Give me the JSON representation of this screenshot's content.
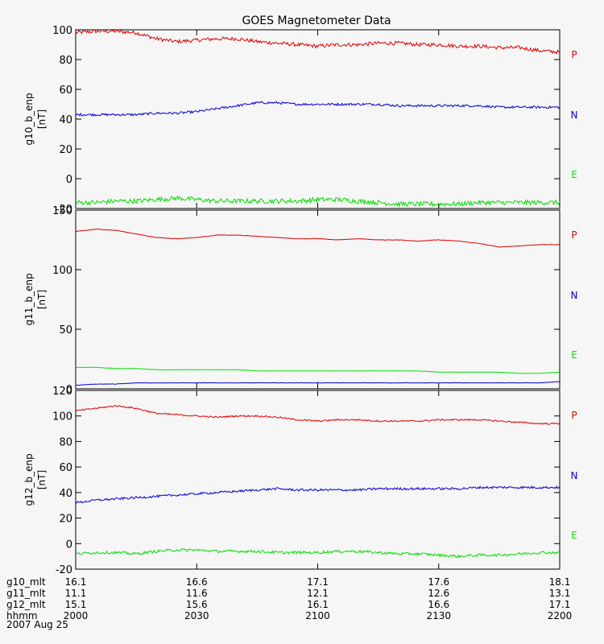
{
  "title": "GOES Magnetometer Data",
  "colors": {
    "P": "#e00000",
    "N": "#0000d0",
    "E": "#00e000",
    "axis": "#000000",
    "background": "#f6f6f6"
  },
  "legend": [
    "P",
    "N",
    "E"
  ],
  "date": "2007 Aug 25",
  "footer": {
    "row_labels": [
      "g10_mlt",
      "g11_mlt",
      "g12_mlt",
      "hhmm"
    ],
    "columns": [
      [
        "16.1",
        "11.1",
        "15.1",
        "2000"
      ],
      [
        "16.6",
        "11.6",
        "15.6",
        "2030"
      ],
      [
        "17.1",
        "12.1",
        "16.1",
        "2100"
      ],
      [
        "17.6",
        "12.6",
        "16.6",
        "2130"
      ],
      [
        "18.1",
        "13.1",
        "17.1",
        "2200"
      ]
    ]
  },
  "chart_data": [
    {
      "type": "line",
      "ylabel": "g10_b_enp",
      "unit": "[nT]",
      "ylim": [
        -20,
        100
      ],
      "yticks": [
        "-20",
        "0",
        "20",
        "40",
        "60",
        "80",
        "100"
      ],
      "x": [
        2000,
        2005,
        2010,
        2015,
        2020,
        2025,
        2030,
        2035,
        2040,
        2045,
        2050,
        2055,
        2100,
        2105,
        2110,
        2115,
        2120,
        2125,
        2130,
        2135,
        2140,
        2145,
        2150,
        2155,
        2200
      ],
      "series": [
        {
          "name": "P",
          "values": [
            98,
            99,
            99,
            98,
            94,
            92,
            93,
            94,
            94,
            92,
            91,
            90,
            89,
            90,
            90,
            91,
            91,
            90,
            90,
            89,
            89,
            88,
            88,
            86,
            85
          ]
        },
        {
          "name": "N",
          "values": [
            43,
            43,
            43,
            43,
            44,
            44,
            45,
            47,
            49,
            51,
            51,
            50,
            50,
            50,
            50,
            50,
            49,
            49,
            49,
            49,
            49,
            48,
            48,
            48,
            48
          ]
        },
        {
          "name": "E",
          "values": [
            -16,
            -16,
            -15,
            -15,
            -14,
            -13,
            -14,
            -15,
            -15,
            -15,
            -15,
            -15,
            -14,
            -14,
            -15,
            -16,
            -17,
            -17,
            -17,
            -17,
            -16,
            -16,
            -16,
            -16,
            -16
          ]
        }
      ],
      "noise": [
        2.5,
        1.6,
        3.2
      ]
    },
    {
      "type": "line",
      "ylabel": "g11_b_enp",
      "unit": "[nT]",
      "ylim": [
        0,
        150
      ],
      "yticks": [
        "0",
        "50",
        "100",
        "150"
      ],
      "x": [
        2000,
        2005,
        2010,
        2015,
        2020,
        2025,
        2030,
        2035,
        2040,
        2045,
        2050,
        2055,
        2100,
        2105,
        2110,
        2115,
        2120,
        2125,
        2130,
        2135,
        2140,
        2145,
        2150,
        2155,
        2200
      ],
      "series": [
        {
          "name": "P",
          "values": [
            132,
            134,
            133,
            130,
            127,
            126,
            127,
            129,
            129,
            128,
            127,
            126,
            126,
            125,
            126,
            125,
            125,
            124,
            125,
            124,
            122,
            119,
            120,
            121,
            121
          ]
        },
        {
          "name": "N",
          "values": [
            3,
            4,
            4,
            5,
            5,
            5,
            5,
            5,
            5,
            5,
            5,
            5,
            5,
            5,
            5,
            5,
            5,
            5,
            5,
            5,
            5,
            5,
            5,
            5,
            6
          ]
        },
        {
          "name": "E",
          "values": [
            18,
            18,
            17,
            17,
            16,
            16,
            16,
            16,
            16,
            15,
            15,
            15,
            15,
            15,
            15,
            15,
            15,
            15,
            14,
            14,
            14,
            14,
            13,
            13,
            14
          ]
        }
      ],
      "noise": [
        0.4,
        0.3,
        0.3
      ]
    },
    {
      "type": "line",
      "ylabel": "g12_b_enp",
      "unit": "[nT]",
      "ylim": [
        -20,
        120
      ],
      "yticks": [
        "-20",
        "0",
        "20",
        "40",
        "60",
        "80",
        "100",
        "120"
      ],
      "x": [
        2000,
        2005,
        2010,
        2015,
        2020,
        2025,
        2030,
        2035,
        2040,
        2045,
        2050,
        2055,
        2100,
        2105,
        2110,
        2115,
        2120,
        2125,
        2130,
        2135,
        2140,
        2145,
        2150,
        2155,
        2200
      ],
      "series": [
        {
          "name": "P",
          "values": [
            104,
            106,
            108,
            106,
            102,
            101,
            100,
            99,
            100,
            100,
            99,
            97,
            96,
            97,
            97,
            96,
            96,
            96,
            97,
            97,
            97,
            96,
            95,
            94,
            94
          ]
        },
        {
          "name": "N",
          "values": [
            32,
            34,
            35,
            36,
            37,
            38,
            39,
            40,
            41,
            42,
            43,
            42,
            42,
            42,
            42,
            43,
            43,
            43,
            43,
            43,
            44,
            44,
            44,
            44,
            44
          ]
        },
        {
          "name": "E",
          "values": [
            -8,
            -7,
            -7,
            -8,
            -6,
            -5,
            -5,
            -6,
            -6,
            -6,
            -7,
            -7,
            -7,
            -6,
            -6,
            -7,
            -8,
            -8,
            -9,
            -10,
            -9,
            -9,
            -8,
            -7,
            -7
          ]
        }
      ],
      "noise": [
        1.2,
        1.8,
        2.2
      ]
    }
  ]
}
